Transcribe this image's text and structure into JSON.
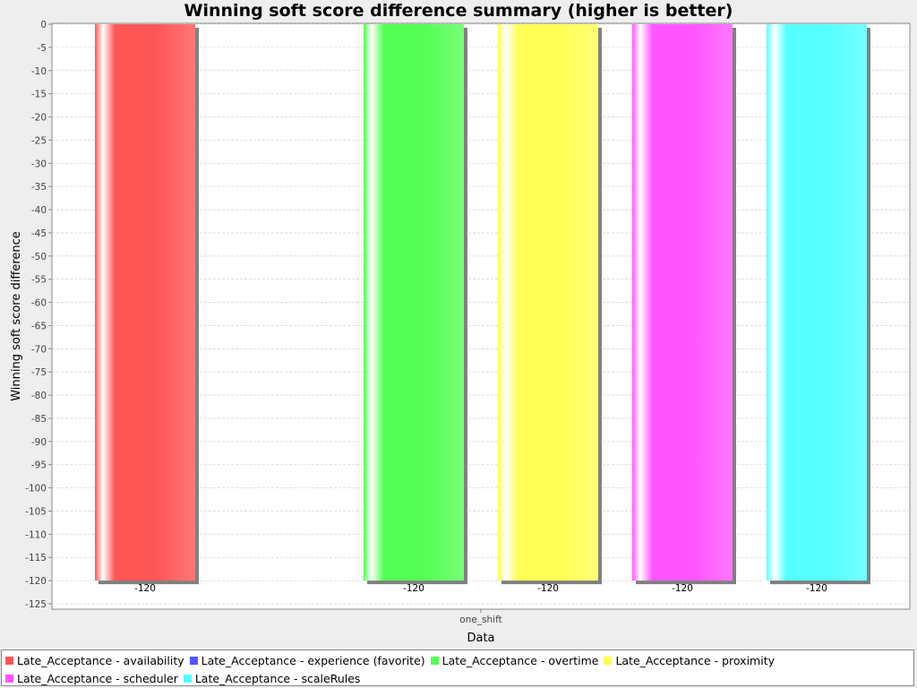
{
  "chart_data": {
    "type": "bar",
    "title": "Winning soft score difference summary (higher is better)",
    "xlabel": "Data",
    "ylabel": "Winning soft score difference",
    "categories": [
      "one_shift"
    ],
    "ylim": [
      -125,
      0
    ],
    "ytick_step": 5,
    "grid": true,
    "legend_position": "bottom",
    "series": [
      {
        "name": "Late_Acceptance - availability",
        "color": "#ff5555",
        "values": [
          -120
        ],
        "data_label": "-120"
      },
      {
        "name": "Late_Acceptance - experience (favorite)",
        "color": "#5555ff",
        "values": [
          0
        ],
        "data_label": ""
      },
      {
        "name": "Late_Acceptance - overtime",
        "color": "#55ff55",
        "values": [
          -120
        ],
        "data_label": "-120"
      },
      {
        "name": "Late_Acceptance - proximity",
        "color": "#ffff55",
        "values": [
          -120
        ],
        "data_label": "-120"
      },
      {
        "name": "Late_Acceptance - scheduler",
        "color": "#ff55ff",
        "values": [
          -120
        ],
        "data_label": "-120"
      },
      {
        "name": "Late_Acceptance - scaleRules",
        "color": "#55ffff",
        "values": [
          -120
        ],
        "data_label": "-120"
      }
    ]
  }
}
